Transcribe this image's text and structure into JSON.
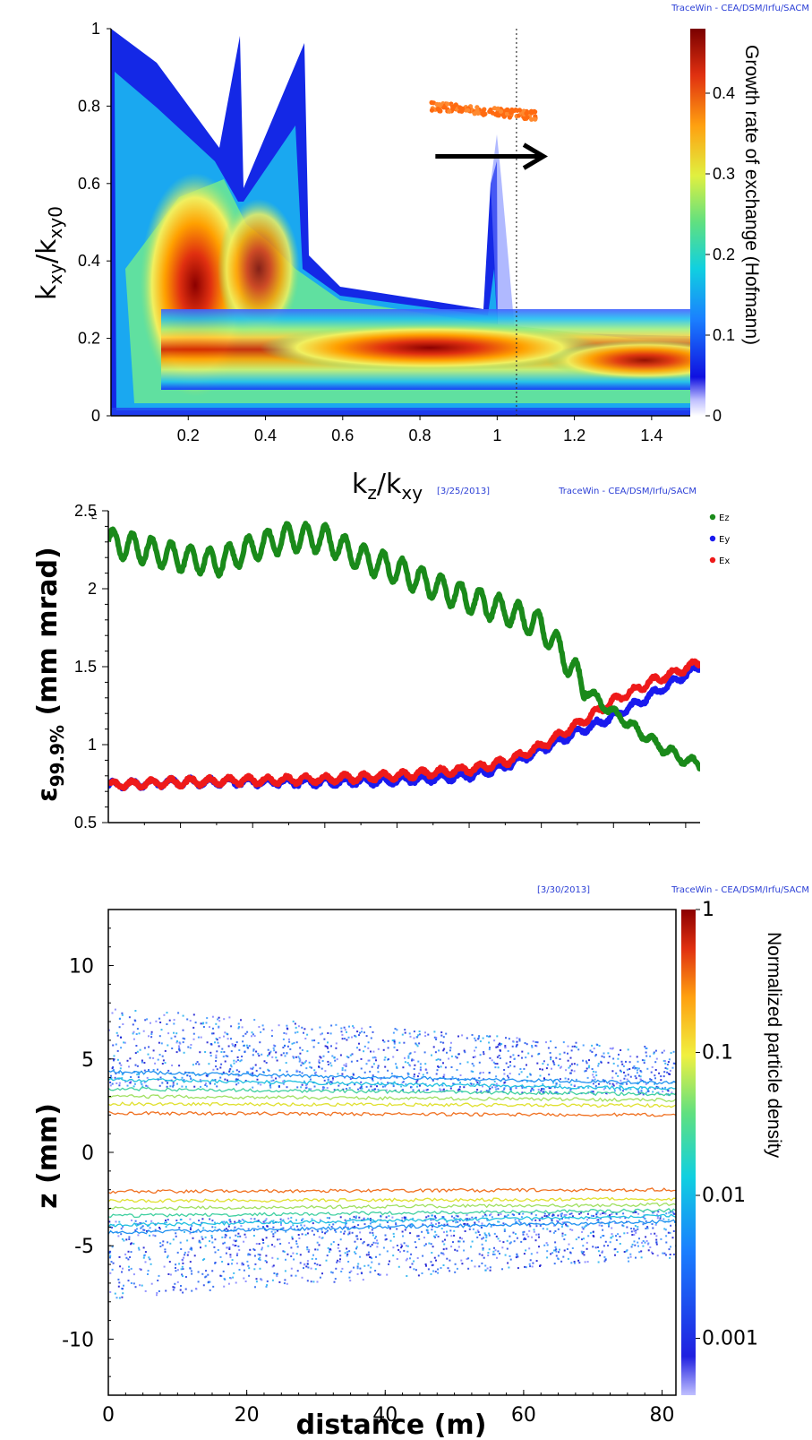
{
  "chart_data": [
    {
      "type": "heatmap",
      "credit": "TraceWin - CEA/DSM/Irfu/SACM",
      "xlabel": {
        "main": "k",
        "sub1": "z",
        "mid": "/k",
        "sub2": "xy"
      },
      "ylabel": {
        "main": "k",
        "sub1": "xy",
        "mid": "/k",
        "sub2": "xy0"
      },
      "colorbar_label": "Growth rate of exchange (Hofmann)",
      "xlim": [
        0,
        1.5
      ],
      "ylim": [
        0,
        1
      ],
      "xticks": [
        "0.2",
        "0.4",
        "0.6",
        "0.8",
        "1",
        "1.2",
        "1.4"
      ],
      "yticks": [
        "0",
        "0.2",
        "0.4",
        "0.6",
        "0.8",
        "1"
      ],
      "colorbar_ticks": [
        "0",
        "0.1",
        "0.2",
        "0.3",
        "0.4"
      ],
      "colorbar_range": [
        0,
        0.48
      ],
      "dotted_line_x": 1.05,
      "arrow": {
        "from": [
          0.84,
          0.67
        ],
        "to": [
          1.12,
          0.67
        ]
      },
      "orange_points_trend": [
        [
          0.83,
          0.8
        ],
        [
          1.1,
          0.775
        ]
      ],
      "growth_peaks": [
        {
          "kz": 0.22,
          "kxy": 0.35,
          "rate": 0.45
        },
        {
          "kz": 0.38,
          "kxy": 0.38,
          "rate": 0.36
        },
        {
          "kz": 0.85,
          "kxy": 0.17,
          "rate": 0.48
        },
        {
          "kz": 1.5,
          "kxy": 0.12,
          "rate": 0.4
        }
      ]
    },
    {
      "type": "line",
      "date": "[3/25/2013]",
      "credit": "TraceWin - CEA/DSM/Irfu/SACM",
      "ylabel": {
        "main": "ε",
        "sub": "99.9%",
        "rest": " (mm mrad)"
      },
      "ylim": [
        0.5,
        2.5
      ],
      "yticks": [
        "0.5",
        "1",
        "1.5",
        "2",
        "2.5"
      ],
      "xlim": [
        0,
        82
      ],
      "corner_glyph": "rl",
      "series": [
        {
          "name": "Ez",
          "color": "#1a8a1a",
          "points": [
            [
              0,
              2.3
            ],
            [
              5,
              2.25
            ],
            [
              10,
              2.2
            ],
            [
              15,
              2.17
            ],
            [
              20,
              2.26
            ],
            [
              25,
              2.33
            ],
            [
              30,
              2.32
            ],
            [
              35,
              2.2
            ],
            [
              40,
              2.12
            ],
            [
              45,
              2.02
            ],
            [
              50,
              1.93
            ],
            [
              55,
              1.86
            ],
            [
              60,
              1.76
            ],
            [
              63,
              1.58
            ],
            [
              66,
              1.36
            ],
            [
              69,
              1.24
            ],
            [
              72,
              1.14
            ],
            [
              76,
              1.0
            ],
            [
              80,
              0.9
            ],
            [
              82,
              0.87
            ]
          ]
        },
        {
          "name": "Ey",
          "color": "#1a1aee",
          "points": [
            [
              0,
              0.74
            ],
            [
              10,
              0.76
            ],
            [
              20,
              0.76
            ],
            [
              30,
              0.76
            ],
            [
              40,
              0.77
            ],
            [
              50,
              0.8
            ],
            [
              55,
              0.86
            ],
            [
              60,
              0.97
            ],
            [
              65,
              1.08
            ],
            [
              70,
              1.18
            ],
            [
              75,
              1.31
            ],
            [
              80,
              1.45
            ],
            [
              82,
              1.5
            ]
          ]
        },
        {
          "name": "Ex",
          "color": "#ee1a1a",
          "points": [
            [
              0,
              0.74
            ],
            [
              10,
              0.76
            ],
            [
              20,
              0.77
            ],
            [
              30,
              0.78
            ],
            [
              40,
              0.8
            ],
            [
              50,
              0.84
            ],
            [
              55,
              0.89
            ],
            [
              60,
              0.99
            ],
            [
              65,
              1.13
            ],
            [
              70,
              1.28
            ],
            [
              75,
              1.4
            ],
            [
              80,
              1.49
            ],
            [
              82,
              1.53
            ]
          ]
        }
      ]
    },
    {
      "type": "scatter",
      "date": "[3/30/2013]",
      "credit": "TraceWin - CEA/DSM/Irfu/SACM",
      "xlabel": "distance (m)",
      "ylabel": "z (mm)",
      "xlim": [
        0,
        82
      ],
      "ylim": [
        -13,
        13
      ],
      "xticks": [
        "0",
        "20",
        "40",
        "60",
        "80"
      ],
      "yticks": [
        "10",
        "5",
        "0",
        "-5",
        "-10"
      ],
      "colorbar_label": "Normalized particle density",
      "colorbar_ticks": [
        "1",
        "0.1",
        "0.01",
        "0.001"
      ],
      "colorbar_scale": "log",
      "contours": [
        {
          "level": 0.5,
          "z_start": 2.1,
          "z_end": 2.0,
          "color": "#f07020"
        },
        {
          "level": 0.2,
          "z_start": 2.6,
          "z_end": 2.5,
          "color": "#e0e030"
        },
        {
          "level": 0.1,
          "z_start": 3.0,
          "z_end": 2.8,
          "color": "#a0e060"
        },
        {
          "level": 0.05,
          "z_start": 3.4,
          "z_end": 3.1,
          "color": "#40d0a0"
        },
        {
          "level": 0.02,
          "z_start": 3.9,
          "z_end": 3.4,
          "color": "#20c0e0"
        },
        {
          "level": 0.01,
          "z_start": 4.3,
          "z_end": 3.7,
          "color": "#2090f0"
        },
        {
          "level": 0.003,
          "z_start": 5.6,
          "z_end": 4.1,
          "color": "#2050f0"
        },
        {
          "level": 0.001,
          "z_start": 6.6,
          "z_end": 4.4,
          "color": "#1010d0"
        }
      ]
    }
  ]
}
